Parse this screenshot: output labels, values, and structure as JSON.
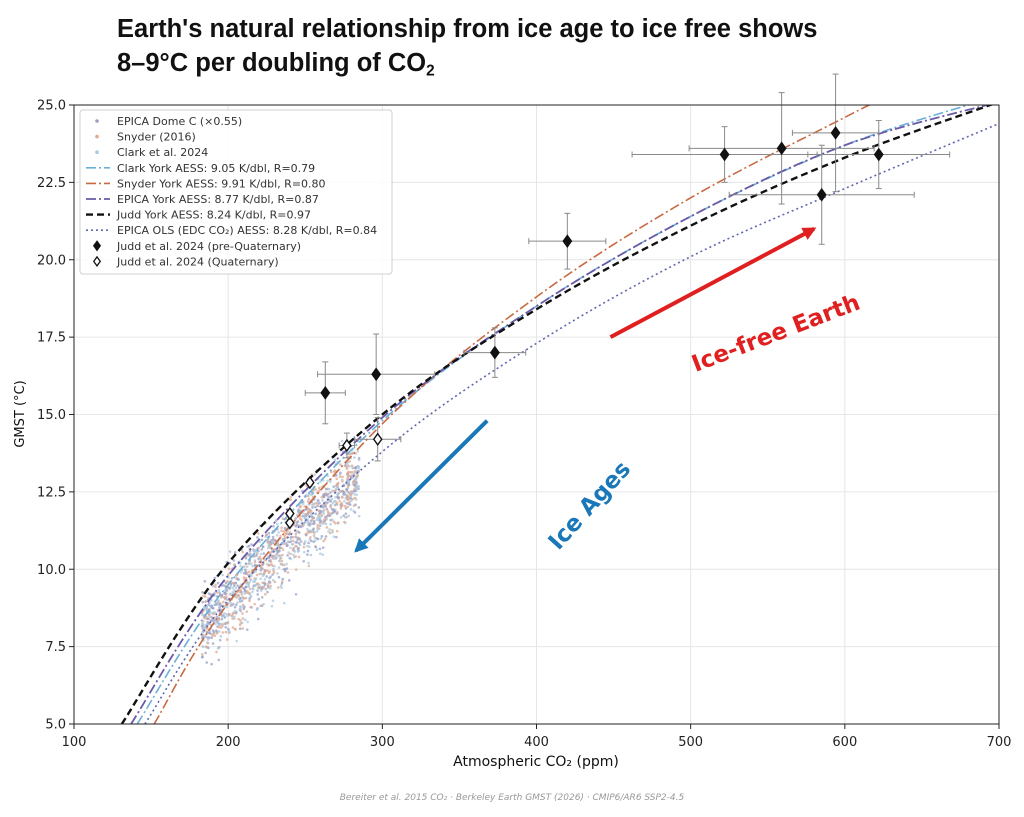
{
  "headline": {
    "line1": "Earth's natural relationship from ice age to ice free shows",
    "line2_main": "8–9°C per doubling of CO",
    "line2_sub": "2"
  },
  "footer": "Bereiter et al. 2015 CO₂ · Berkeley Earth GMST (2026) · CMIP6/AR6 SSP2-4.5",
  "chart_data": {
    "type": "scatter",
    "xlabel": "Atmospheric CO₂ (ppm)",
    "ylabel": "GMST (°C)",
    "xlim": [
      100,
      700
    ],
    "ylim": [
      5,
      25
    ],
    "x_ticks": [
      100,
      200,
      300,
      400,
      500,
      600,
      700
    ],
    "y_ticks": [
      5.0,
      7.5,
      10.0,
      12.5,
      15.0,
      17.5,
      20.0,
      22.5,
      25.0
    ],
    "grid": true,
    "legend_position": "top-left",
    "legend": [
      {
        "label": "EPICA Dome C (×0.55)",
        "kind": "dot",
        "color": "#9aa0c8"
      },
      {
        "label": "Snyder (2016)",
        "kind": "dot",
        "color": "#e0a890"
      },
      {
        "label": "Clark et al. 2024",
        "kind": "dot",
        "color": "#a8c8dc"
      },
      {
        "label": "Clark York AESS: 9.05 K/dbl, R=0.79",
        "kind": "line",
        "color": "#6ab0d8",
        "dash": "10,3,2,3",
        "width": 1.6
      },
      {
        "label": "Snyder York AESS: 9.91 K/dbl, R=0.80",
        "kind": "line",
        "color": "#c86a44",
        "dash": "10,3,2,3",
        "width": 1.6
      },
      {
        "label": "EPICA York AESS: 8.77 K/dbl, R=0.87",
        "kind": "line",
        "color": "#6a5aa8",
        "dash": "10,3,2,3",
        "width": 1.8
      },
      {
        "label": "Judd York AESS: 8.24 K/dbl, R=0.97",
        "kind": "line",
        "color": "#111111",
        "dash": "7,4",
        "width": 2.4
      },
      {
        "label": "EPICA OLS (EDC CO₂) AESS: 8.28 K/dbl, R=0.84",
        "kind": "line",
        "color": "#6068b0",
        "dash": "2,3",
        "width": 1.6
      },
      {
        "label": "Judd et al. 2024 (pre-Quaternary)",
        "kind": "marker-filled"
      },
      {
        "label": "Judd et al. 2024 (Quaternary)",
        "kind": "marker-open"
      }
    ],
    "fit_lines": [
      {
        "sensitivity_k_per_doubling": 9.05,
        "color": "#6ab0d8",
        "dash": "10,3,2,3",
        "width": 1.6,
        "points": [
          [
            141,
            5.0
          ],
          [
            200,
            9.5
          ],
          [
            300,
            14.8
          ],
          [
            400,
            18.5
          ],
          [
            500,
            21.4
          ],
          [
            600,
            23.7
          ],
          [
            700,
            25.3
          ]
        ]
      },
      {
        "sensitivity_k_per_doubling": 9.91,
        "color": "#c86a44",
        "dash": "10,3,2,3",
        "width": 1.6,
        "points": [
          [
            152,
            5.0
          ],
          [
            200,
            8.9
          ],
          [
            300,
            14.7
          ],
          [
            400,
            18.8
          ],
          [
            500,
            22.0
          ],
          [
            600,
            24.6
          ],
          [
            620,
            25.1
          ]
        ]
      },
      {
        "sensitivity_k_per_doubling": 8.77,
        "color": "#6a5aa8",
        "dash": "10,3,2,3",
        "width": 1.8,
        "points": [
          [
            137,
            5.0
          ],
          [
            200,
            9.8
          ],
          [
            300,
            14.9
          ],
          [
            400,
            18.5
          ],
          [
            500,
            21.4
          ],
          [
            600,
            23.7
          ],
          [
            700,
            25.1
          ]
        ]
      },
      {
        "sensitivity_k_per_doubling": 8.24,
        "color": "#111111",
        "dash": "7,4",
        "width": 2.4,
        "points": [
          [
            131,
            5.0
          ],
          [
            200,
            10.2
          ],
          [
            300,
            15.0
          ],
          [
            400,
            18.4
          ],
          [
            500,
            21.1
          ],
          [
            600,
            23.3
          ],
          [
            700,
            25.1
          ]
        ]
      },
      {
        "sensitivity_k_per_doubling": 8.28,
        "color": "#6068b0",
        "dash": "2,3",
        "width": 1.6,
        "points": [
          [
            146,
            5.0
          ],
          [
            200,
            9.0
          ],
          [
            300,
            13.8
          ],
          [
            400,
            17.3
          ],
          [
            500,
            20.1
          ],
          [
            600,
            22.3
          ],
          [
            700,
            24.4
          ]
        ]
      }
    ],
    "judd_pre_quaternary": [
      {
        "x": 263,
        "y": 15.7,
        "xerr": 13,
        "yerr": 1.0
      },
      {
        "x": 296,
        "y": 16.3,
        "xerr": 38,
        "yerr": 1.3
      },
      {
        "x": 373,
        "y": 17.0,
        "xerr": 20,
        "yerr": 0.8
      },
      {
        "x": 420,
        "y": 20.6,
        "xerr": 25,
        "yerr": 0.9
      },
      {
        "x": 522,
        "y": 23.4,
        "xerr": 60,
        "yerr": 0.9
      },
      {
        "x": 559,
        "y": 23.6,
        "xerr": 60,
        "yerr": 1.8
      },
      {
        "x": 594,
        "y": 24.1,
        "xerr": 28,
        "yerr": 1.9
      },
      {
        "x": 585,
        "y": 22.1,
        "xerr": 60,
        "yerr": 1.6
      },
      {
        "x": 622,
        "y": 23.4,
        "xerr": 46,
        "yerr": 1.1
      }
    ],
    "judd_quaternary": [
      {
        "x": 240,
        "y": 11.5,
        "xerr": 0,
        "yerr": 0
      },
      {
        "x": 240,
        "y": 11.8,
        "xerr": 0,
        "yerr": 0
      },
      {
        "x": 253,
        "y": 12.8,
        "xerr": 0,
        "yerr": 0
      },
      {
        "x": 277,
        "y": 14.0,
        "xerr": 5,
        "yerr": 0.4
      },
      {
        "x": 297,
        "y": 14.2,
        "xerr": 15,
        "yerr": 0.7
      }
    ],
    "scatter_cloud": {
      "x_range": [
        183,
        285
      ],
      "y_range": [
        6.8,
        14.4
      ],
      "trend": "increasing",
      "series": [
        "EPICA Dome C (×0.55)",
        "Snyder (2016)",
        "Clark et al. 2024"
      ]
    },
    "annotations": [
      {
        "text": "Ice-free Earth",
        "color": "#e02020",
        "rotation": -21,
        "x": 557,
        "y": 17.4,
        "arrow_from": [
          448,
          17.5
        ],
        "arrow_to": [
          580,
          21.0
        ]
      },
      {
        "text": "Ice Ages",
        "color": "#1a78b8",
        "rotation": -48,
        "x": 438,
        "y": 11.9,
        "arrow_from": [
          368,
          14.8
        ],
        "arrow_to": [
          283,
          10.6
        ]
      }
    ]
  }
}
